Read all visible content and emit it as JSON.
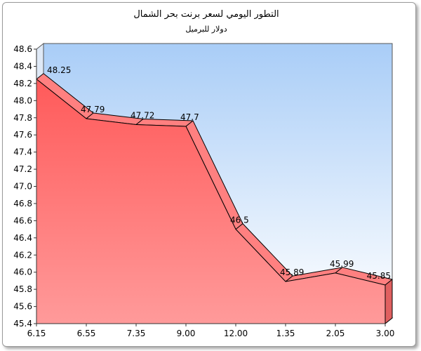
{
  "chart_data": {
    "type": "area",
    "title": "التطور اليومي لسعر برنت بحر الشمال",
    "subtitle": "دولار للبرميل",
    "categories": [
      "6.15",
      "6.55",
      "7.35",
      "9.00",
      "12.00",
      "1.35",
      "2.05",
      "3.00"
    ],
    "values": [
      48.25,
      47.79,
      47.72,
      47.7,
      46.5,
      45.89,
      45.99,
      45.85
    ],
    "data_labels": [
      "48.25",
      "47.79",
      "47.72",
      "47.7",
      "46.5",
      "45.89",
      "45.99",
      "45.85"
    ],
    "ylim": [
      45.4,
      48.6
    ],
    "yticks": [
      "45.4",
      "45.6",
      "45.8",
      "46.0",
      "46.2",
      "46.4",
      "46.6",
      "46.8",
      "47.0",
      "47.2",
      "47.4",
      "47.6",
      "47.8",
      "48.0",
      "48.2",
      "48.4",
      "48.6"
    ],
    "xlabel": "",
    "ylabel": "",
    "grid": false,
    "style": "3d-area",
    "colors": {
      "area_top": "#ff5a5a",
      "area_bottom": "#ff9a9a",
      "ridge": "#ff8080",
      "background_top": "#a9cdf7",
      "background_bottom": "#ffffff"
    }
  }
}
